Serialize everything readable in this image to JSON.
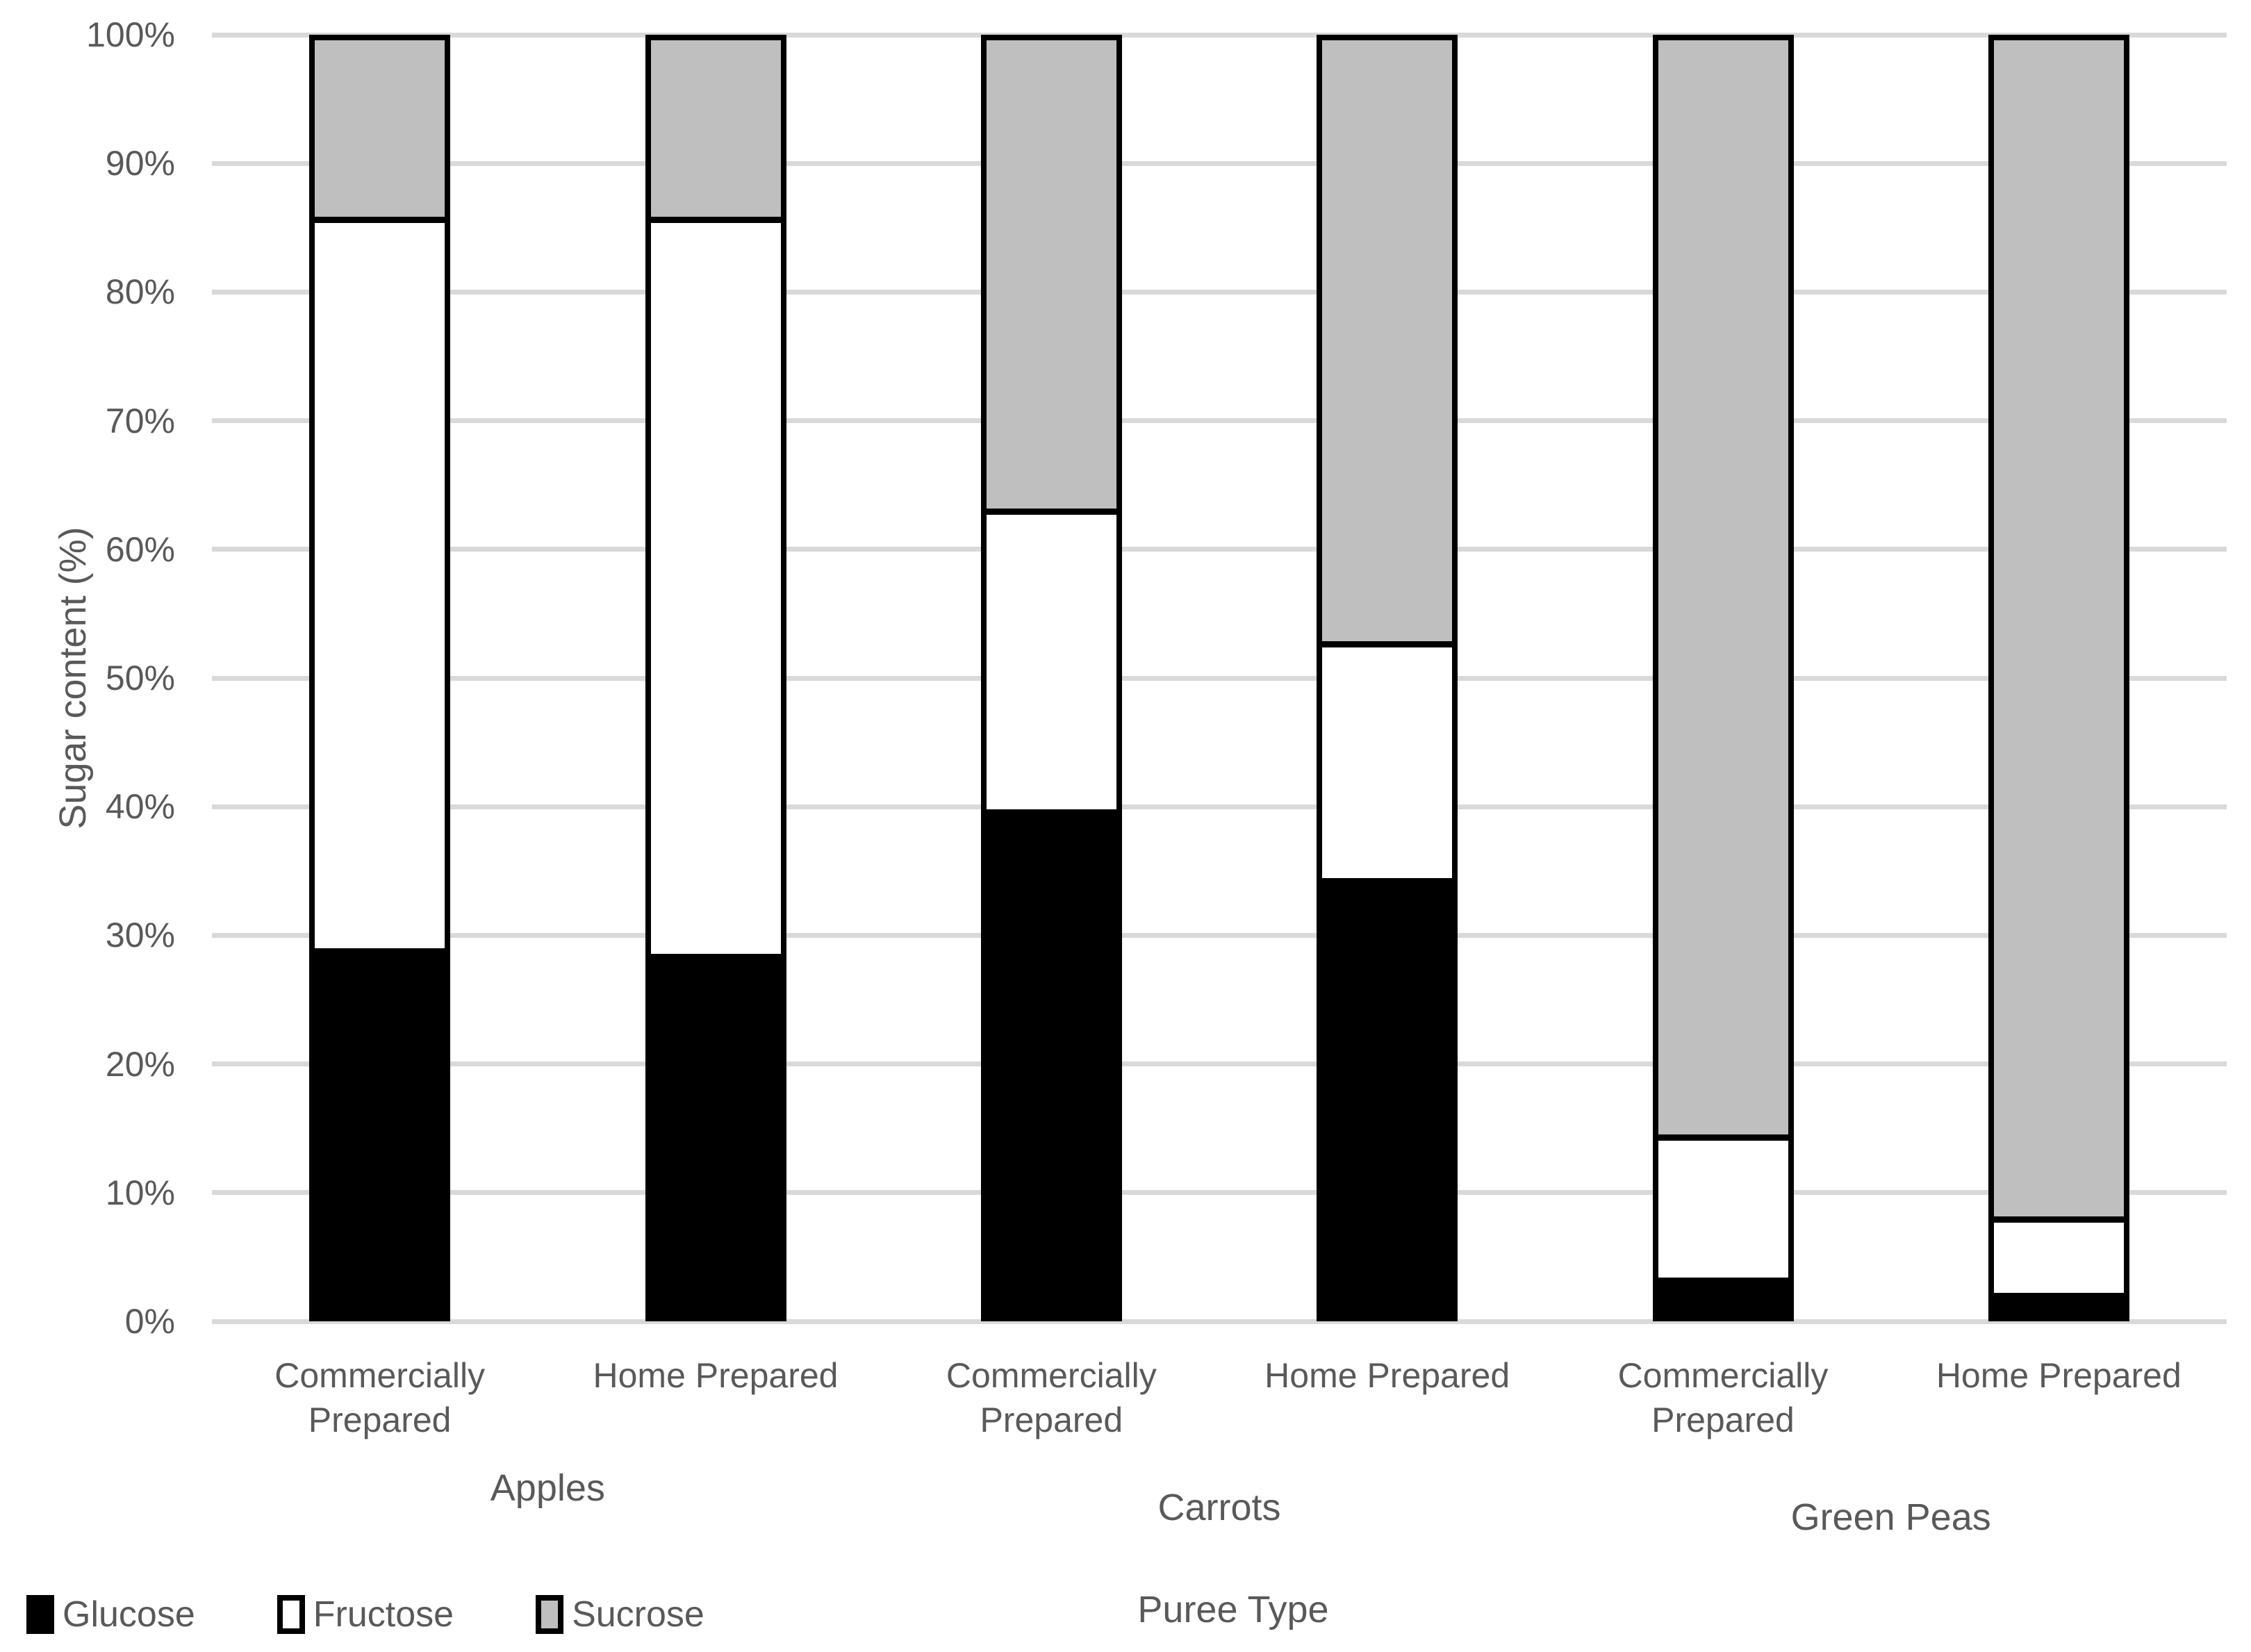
{
  "chart_data": {
    "type": "bar",
    "stacked": true,
    "orientation": "vertical",
    "title": "",
    "xlabel": "Puree Type",
    "ylabel": "Sugar content (%)",
    "ylim": [
      0,
      100
    ],
    "ytick_step": 10,
    "ytick_labels": [
      "0%",
      "10%",
      "20%",
      "30%",
      "40%",
      "50%",
      "60%",
      "70%",
      "80%",
      "90%",
      "100%"
    ],
    "grid": true,
    "groups": [
      "Apples",
      "Carrots",
      "Green Peas"
    ],
    "categories": [
      "Commercially Prepared",
      "Home Prepared",
      "Commercially Prepared",
      "Home Prepared",
      "Commercially Prepared",
      "Home Prepared"
    ],
    "series": [
      {
        "name": "Glucose",
        "color": "#000000",
        "values": [
          28.3,
          27.9,
          39.2,
          33.8,
          2.5,
          1.3
        ]
      },
      {
        "name": "Fructose",
        "color": "#ffffff",
        "values": [
          57.4,
          57.8,
          23.6,
          18.6,
          11.2,
          6.0
        ]
      },
      {
        "name": "Sucrose",
        "color": "#bfbfbf",
        "values": [
          14.3,
          14.3,
          37.2,
          47.6,
          86.3,
          92.7
        ]
      }
    ],
    "legend": [
      "Glucose",
      "Fructose",
      "Sucrose"
    ],
    "legend_position": "bottom-left"
  },
  "colors": {
    "glucose": "#000000",
    "fructose": "#ffffff",
    "sucrose": "#bfbfbf",
    "bar_outline": "#000000",
    "gridline": "#d9d9d9",
    "text": "#595959",
    "background": "#ffffff"
  }
}
